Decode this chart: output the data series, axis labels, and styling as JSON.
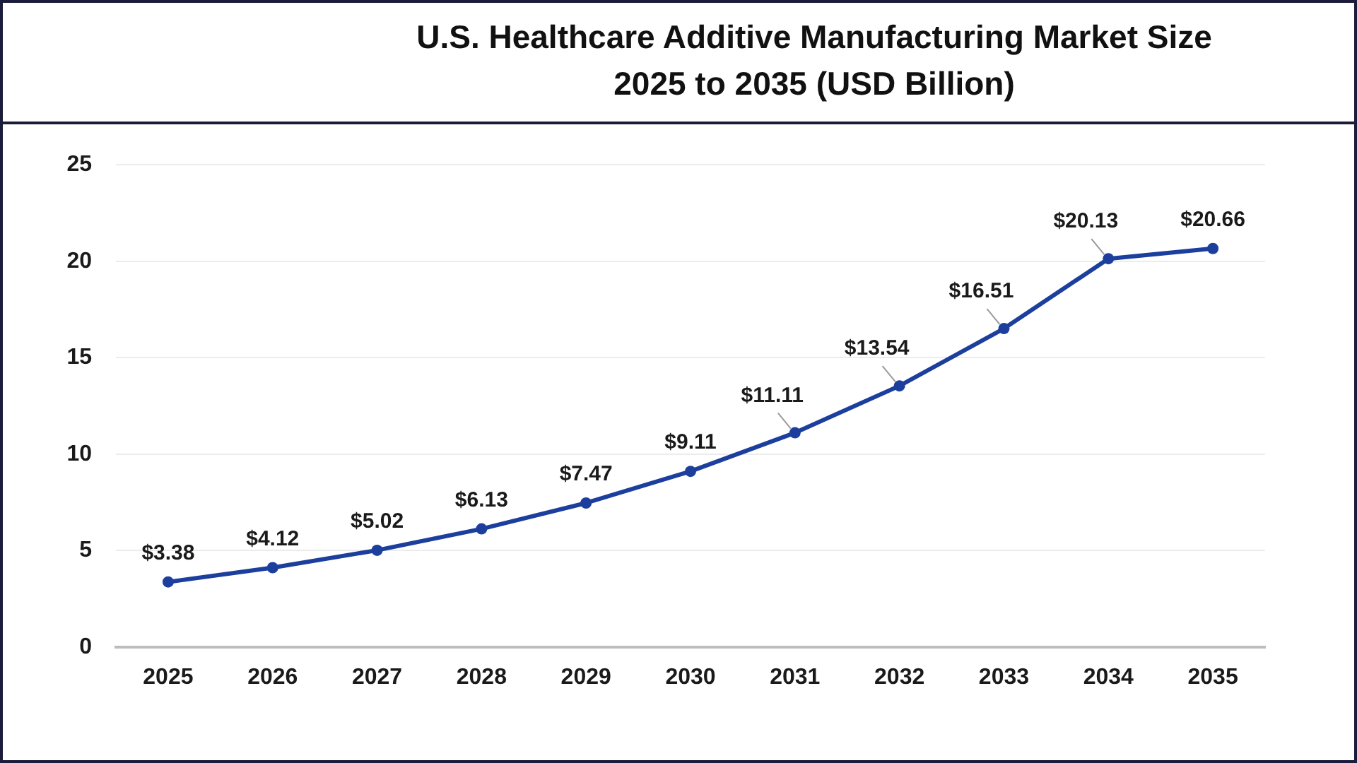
{
  "chart_data": {
    "type": "line",
    "title": "U.S. Healthcare Additive Manufacturing Market Size 2025 to 2035 (USD Billion)",
    "categories": [
      "2025",
      "2026",
      "2027",
      "2028",
      "2029",
      "2030",
      "2031",
      "2032",
      "2033",
      "2034",
      "2035"
    ],
    "values": [
      3.38,
      4.12,
      5.02,
      6.13,
      7.47,
      9.11,
      11.11,
      13.54,
      16.51,
      20.13,
      20.66
    ],
    "value_labels": [
      "$3.38",
      "$4.12",
      "$5.02",
      "$6.13",
      "$7.47",
      "$9.11",
      "$11.11",
      "$13.54",
      "$16.51",
      "$20.13",
      "$20.66"
    ],
    "color": "#1c3f9e",
    "marker": "circle",
    "line_style": "solid",
    "ylim": [
      0,
      25
    ],
    "yticks": [
      0,
      5,
      10,
      15,
      20,
      25
    ],
    "grid": "y"
  }
}
